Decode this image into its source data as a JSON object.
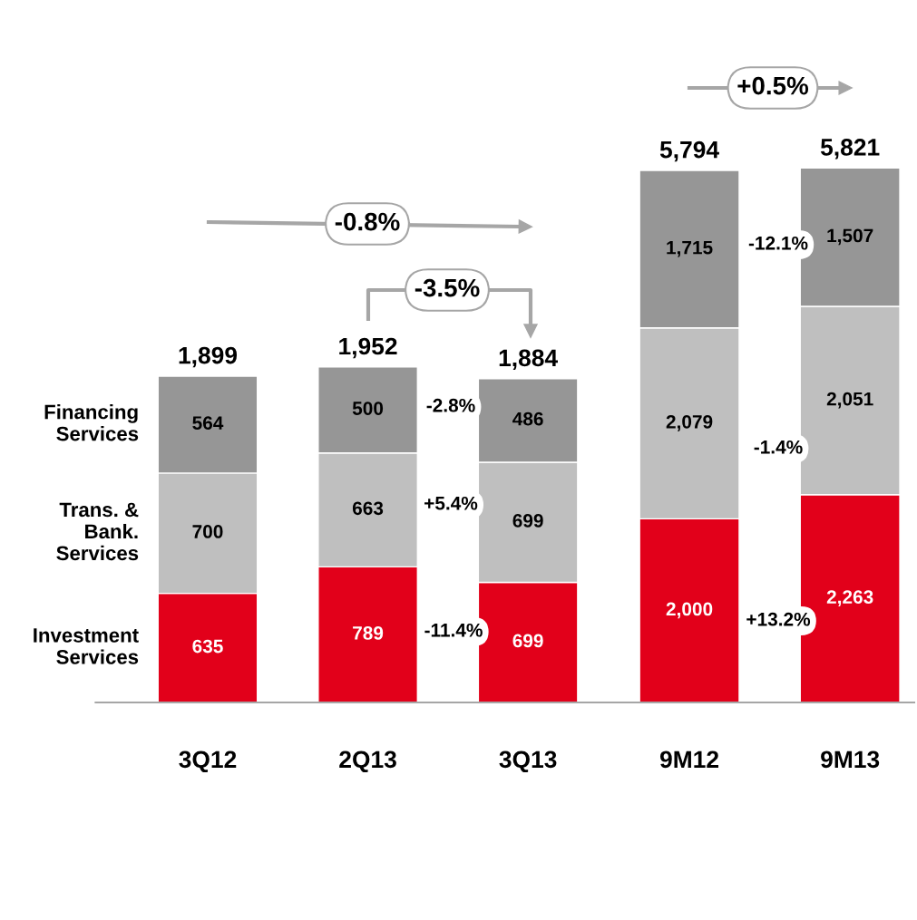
{
  "chart_data": [
    {
      "type": "bar",
      "stacked": true,
      "categories": [
        "3Q12",
        "2Q13",
        "3Q13"
      ],
      "series": [
        {
          "name": "Investment Services",
          "color": "#e2001a",
          "values": [
            635,
            789,
            699
          ],
          "value_labels": [
            "635",
            "789",
            "699"
          ]
        },
        {
          "name": "Trans. & Bank. Services",
          "color": "#bfbfbf",
          "values": [
            700,
            663,
            699
          ],
          "value_labels": [
            "700",
            "663",
            "699"
          ]
        },
        {
          "name": "Financing Services",
          "color": "#969696",
          "values": [
            564,
            500,
            486
          ],
          "value_labels": [
            "564",
            "500",
            "486"
          ]
        }
      ],
      "totals": [
        "1,899",
        "1,952",
        "1,884"
      ],
      "annotations": [
        "-2.8%",
        "+5.4%",
        "-11.4%",
        "-0.8%",
        "-3.5%"
      ],
      "tick_labels": "x",
      "grid": false,
      "legend": false
    },
    {
      "type": "bar",
      "stacked": true,
      "categories": [
        "9M12",
        "9M13"
      ],
      "series": [
        {
          "color": "#e2001a",
          "values": [
            2000,
            2263
          ],
          "value_labels": [
            "2,000",
            "2,263"
          ]
        },
        {
          "color": "#bfbfbf",
          "values": [
            2079,
            2051
          ],
          "value_labels": [
            "2,079",
            "2,051"
          ]
        },
        {
          "color": "#969696",
          "values": [
            1715,
            1507
          ],
          "value_labels": [
            "1,715",
            "1,507"
          ]
        }
      ],
      "totals": [
        "5,794",
        "5,821"
      ],
      "annotations": [
        "-12.1%",
        "-1.4%",
        "+13.2%",
        "+0.5%"
      ],
      "tick_labels": "x",
      "grid": false,
      "legend": false
    }
  ]
}
